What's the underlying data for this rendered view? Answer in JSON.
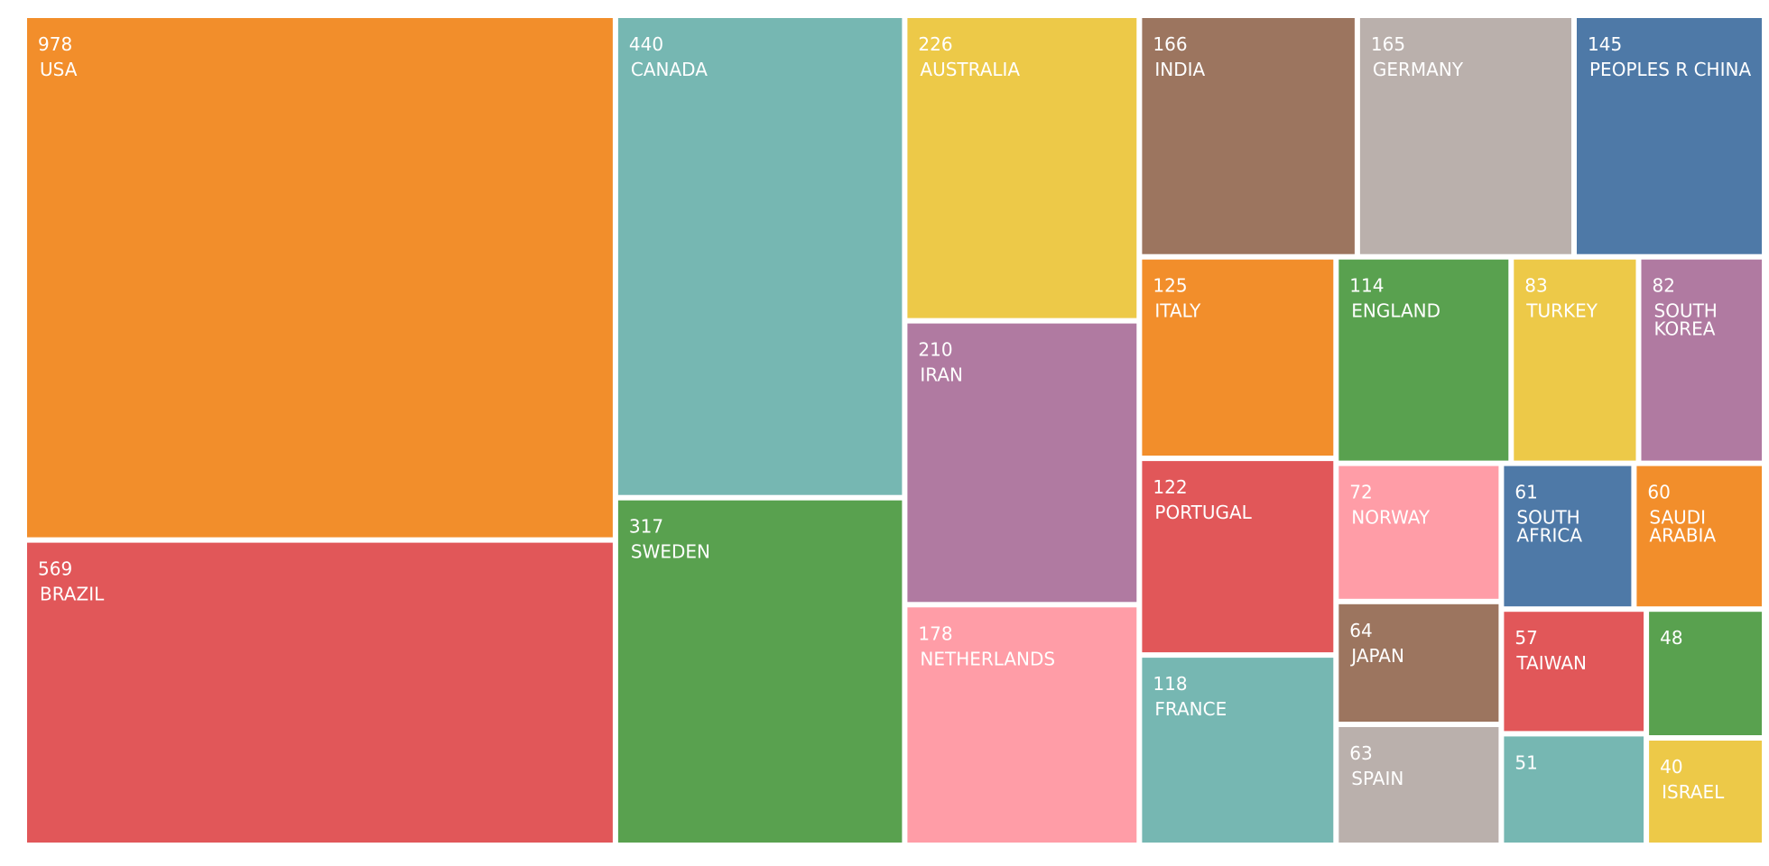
{
  "chart_data": {
    "type": "treemap",
    "items": [
      {
        "label": "USA",
        "value": 978,
        "color": "#F28E2B"
      },
      {
        "label": "BRAZIL",
        "value": 569,
        "color": "#E15759"
      },
      {
        "label": "CANADA",
        "value": 440,
        "color": "#76B7B2"
      },
      {
        "label": "SWEDEN",
        "value": 317,
        "color": "#59A14F"
      },
      {
        "label": "AUSTRALIA",
        "value": 226,
        "color": "#EDC948"
      },
      {
        "label": "IRAN",
        "value": 210,
        "color": "#B07AA1"
      },
      {
        "label": "NETHERLANDS",
        "value": 178,
        "color": "#FF9DA7"
      },
      {
        "label": "INDIA",
        "value": 166,
        "color": "#9C755F"
      },
      {
        "label": "GERMANY",
        "value": 165,
        "color": "#BAB0AC"
      },
      {
        "label": "PEOPLES R CHINA",
        "value": 145,
        "color": "#4E79A7"
      },
      {
        "label": "ITALY",
        "value": 125,
        "color": "#F28E2B"
      },
      {
        "label": "PORTUGAL",
        "value": 122,
        "color": "#E15759"
      },
      {
        "label": "FRANCE",
        "value": 118,
        "color": "#76B7B2"
      },
      {
        "label": "ENGLAND",
        "value": 114,
        "color": "#59A14F"
      },
      {
        "label": "TURKEY",
        "value": 83,
        "color": "#EDC948"
      },
      {
        "label": "SOUTH KOREA",
        "value": 82,
        "color": "#B07AA1"
      },
      {
        "label": "NORWAY",
        "value": 72,
        "color": "#FF9DA7"
      },
      {
        "label": "JAPAN",
        "value": 64,
        "color": "#9C755F"
      },
      {
        "label": "SPAIN",
        "value": 63,
        "color": "#BAB0AC"
      },
      {
        "label": "SOUTH AFRICA",
        "value": 61,
        "color": "#4E79A7"
      },
      {
        "label": "SAUDI ARABIA",
        "value": 60,
        "color": "#F28E2B"
      },
      {
        "label": "TAIWAN",
        "value": 57,
        "color": "#E15759"
      },
      {
        "label": "",
        "value": 51,
        "color": "#76B7B2"
      },
      {
        "label": "",
        "value": 48,
        "color": "#59A14F"
      },
      {
        "label": "ISRAEL",
        "value": 40,
        "color": "#EDC948"
      }
    ]
  }
}
